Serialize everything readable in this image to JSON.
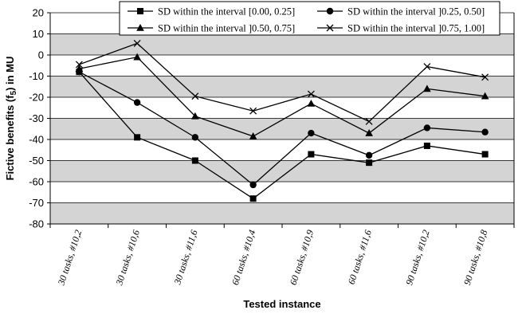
{
  "chart_data": {
    "type": "line",
    "title": "",
    "xlabel": "Tested instance",
    "ylabel": "Fictive benefits (f5) in MU",
    "ylabel_parts": {
      "before": "Fictive benefits (f",
      "sub": "5",
      "after": ") in MU"
    },
    "ylim": [
      -80,
      20
    ],
    "yticks": [
      20,
      10,
      0,
      -10,
      -20,
      -30,
      -40,
      -50,
      -60,
      -70,
      -80
    ],
    "ytick_labels": [
      "20",
      "10",
      "0",
      "-10",
      "-20",
      "-30",
      "-40",
      "-50",
      "-60",
      "-70",
      "-80"
    ],
    "grid": true,
    "legend_position": "top",
    "categories": [
      "30 tasks, #10,2",
      "30 tasks, #10,6",
      "30 tasks, #11,6",
      "60 tasks, #10,4",
      "60 tasks, #10,9",
      "60 tasks, #11,6",
      "90 tasks, #10,2",
      "90 tasks, #10,8"
    ],
    "series": [
      {
        "name": "SD within the interval [0.00, 0.25]",
        "marker": "square",
        "values": [
          -8,
          -39,
          -50,
          -68,
          -47,
          -51,
          -43,
          -47
        ]
      },
      {
        "name": "SD within the interval ]0.25, 0.50]",
        "marker": "circle",
        "values": [
          -8,
          -22.5,
          -39,
          -61.5,
          -37,
          -47.5,
          -34.5,
          -36.5
        ]
      },
      {
        "name": "SD within the interval ]0.50, 0.75]",
        "marker": "triangle",
        "values": [
          -6.5,
          -1,
          -29,
          -38.5,
          -23,
          -37,
          -16,
          -19.5
        ]
      },
      {
        "name": "SD within the interval ]0.75, 1.00]",
        "marker": "x",
        "values": [
          -4.5,
          5.5,
          -19.5,
          -26.5,
          -18.5,
          -31.5,
          -5.5,
          -10.5
        ]
      }
    ],
    "colors": {
      "line": "#000000",
      "band_light": "#ffffff",
      "band_dark": "#d4d4d4",
      "grid": "#000000"
    }
  }
}
